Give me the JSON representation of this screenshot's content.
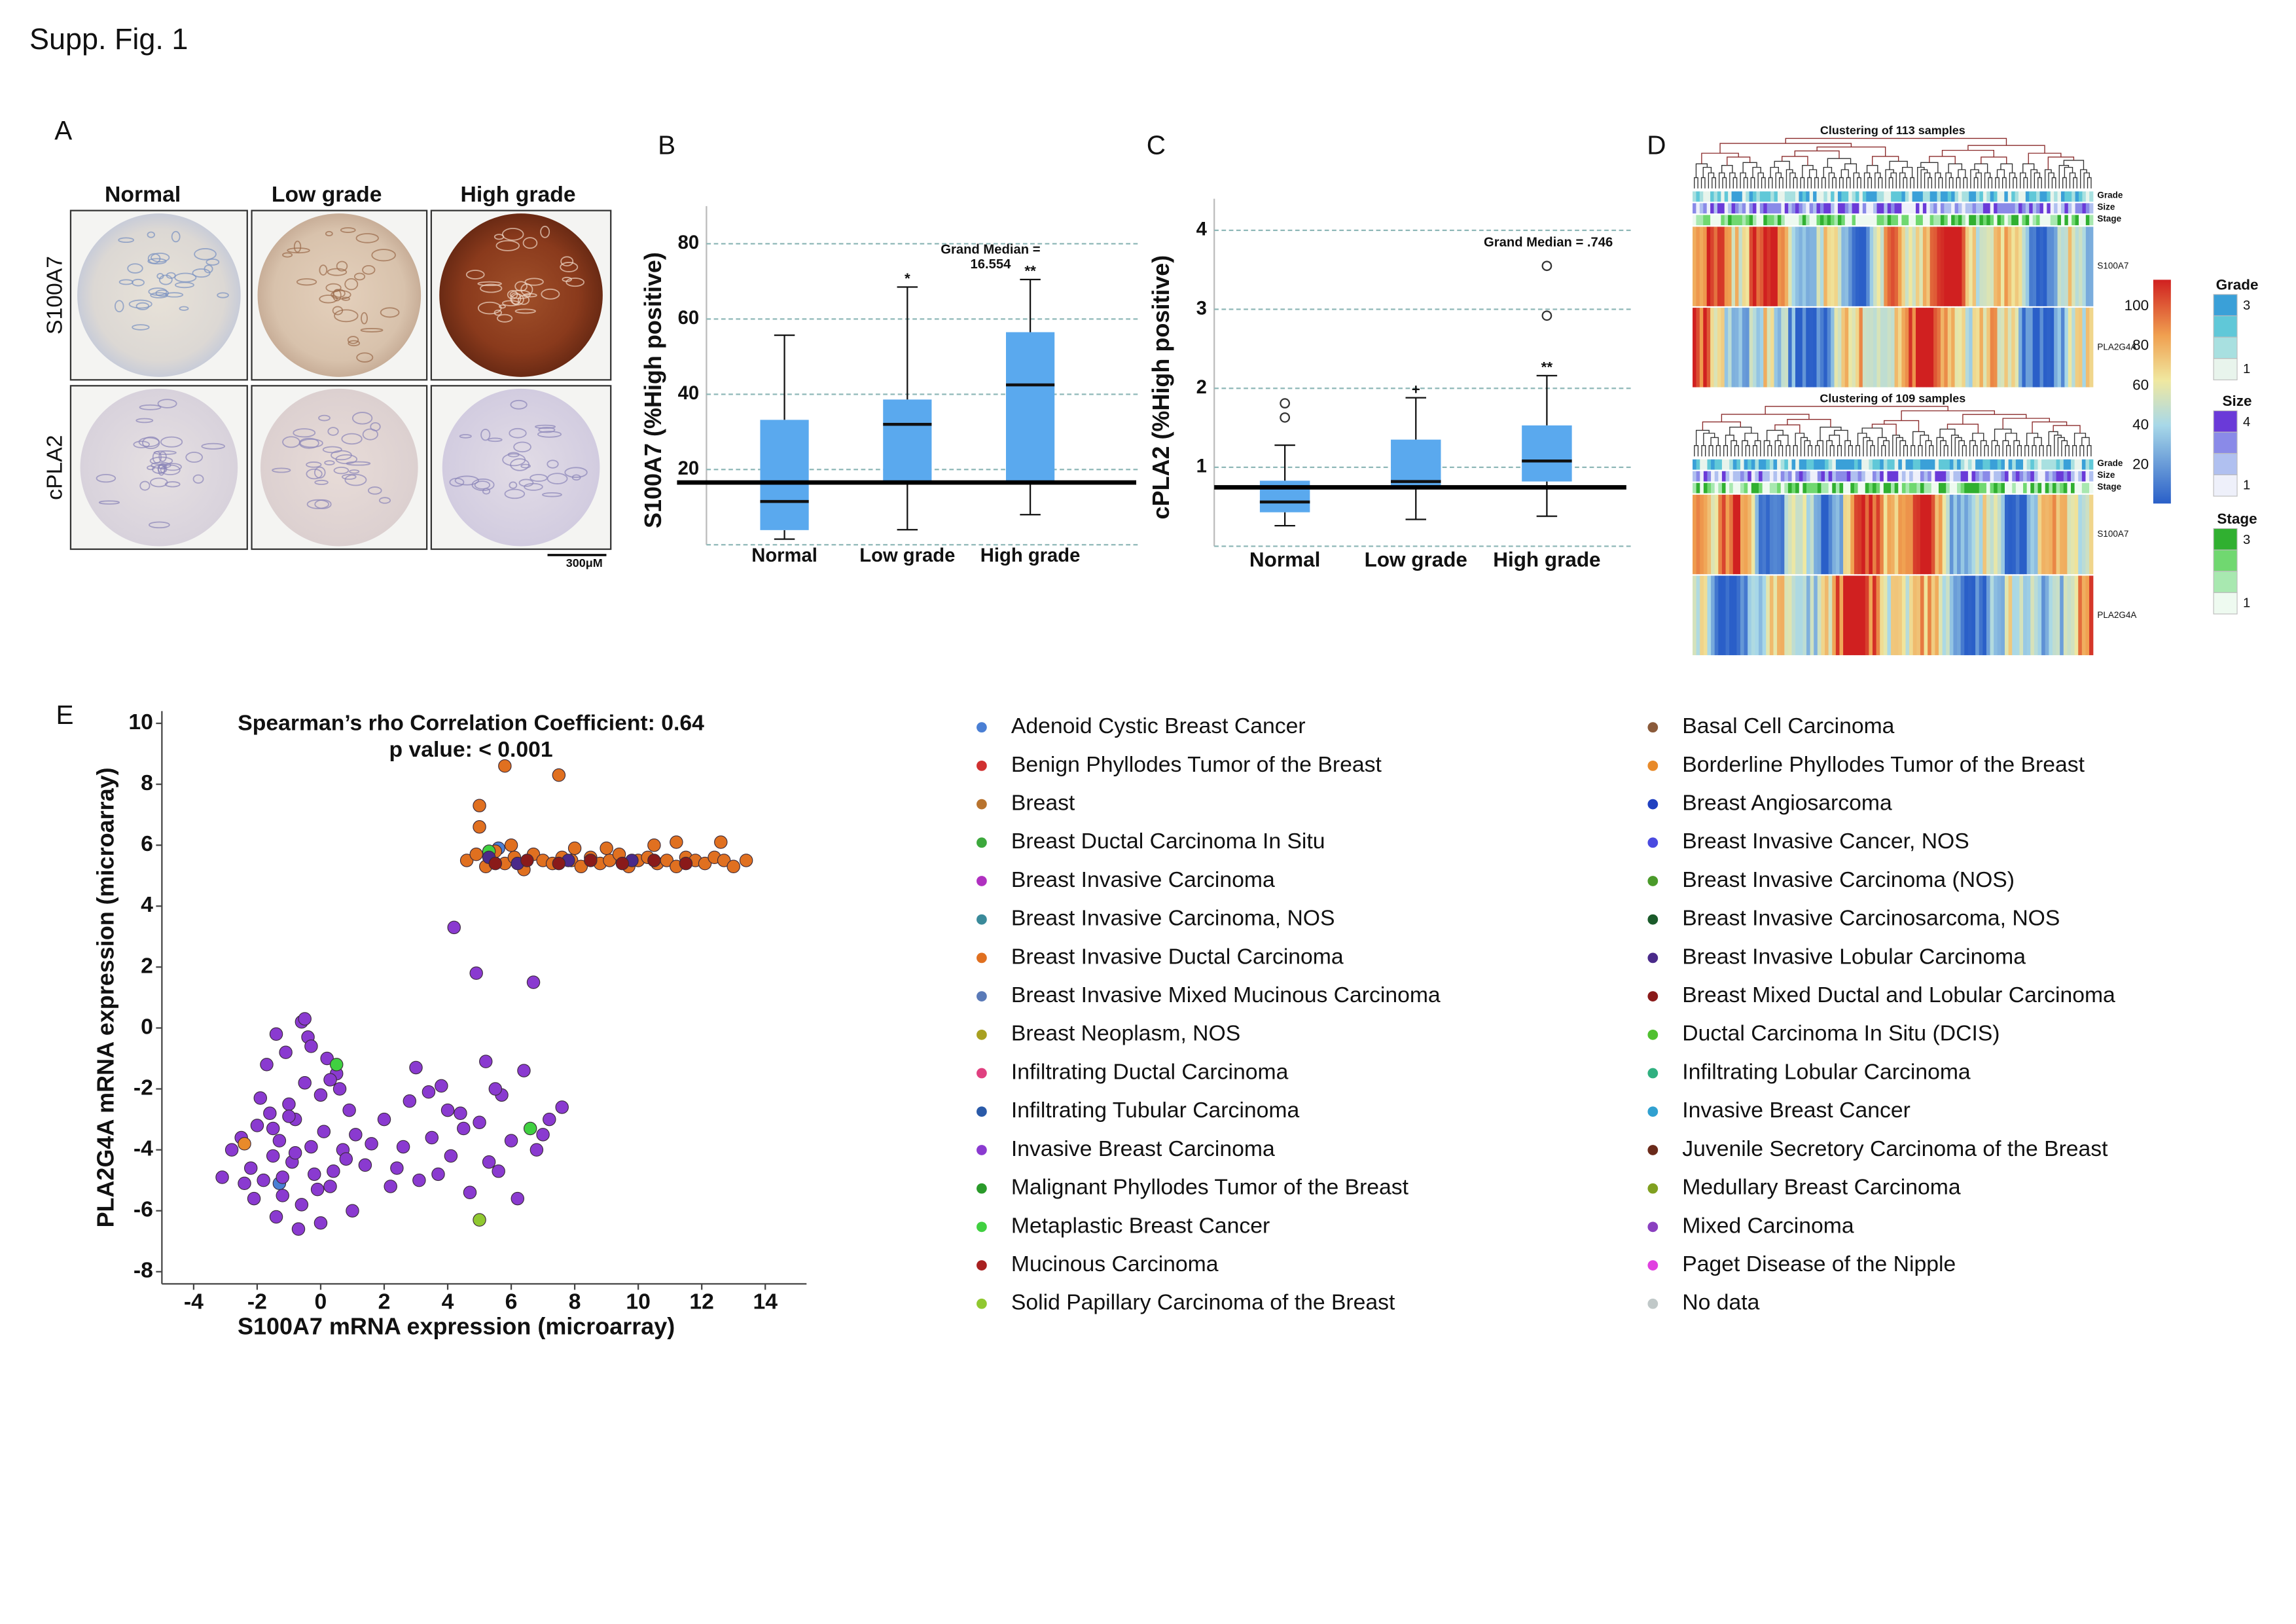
{
  "title": "Supp. Fig. 1",
  "panel_a": {
    "label": "A",
    "columns": [
      "Normal",
      "Low grade",
      "High grade"
    ],
    "rows": [
      "S100A7",
      "cPLA2"
    ],
    "scale_bar": "300μM"
  },
  "panel_d": {
    "label": "D",
    "heatmaps": [
      {
        "title": "Clustering of 113 samples",
        "tracks": [
          "Grade",
          "Size",
          "Stage"
        ],
        "genes": [
          "S100A7",
          "PLA2G4A"
        ]
      },
      {
        "title": "Clustering of 109 samples",
        "tracks": [
          "Grade",
          "Size",
          "Stage"
        ],
        "genes": [
          "S100A7",
          "PLA2G4A"
        ]
      }
    ],
    "colorbar_ticks": [
      100,
      80,
      60,
      40,
      20
    ],
    "legends": [
      {
        "title": "Grade",
        "labels": [
          3,
          1
        ]
      },
      {
        "title": "Size",
        "labels": [
          4,
          1
        ]
      },
      {
        "title": "Stage",
        "labels": [
          3,
          1
        ]
      }
    ]
  },
  "chart_data": [
    {
      "type": "box",
      "label": "B",
      "ylabel": "S100A7 (%High positive)",
      "categories": [
        "Normal",
        "Low grade",
        "High grade"
      ],
      "color": "#5aa9ee",
      "grid": true,
      "ylim": [
        0,
        90
      ],
      "yticks": [
        20,
        40,
        60,
        80
      ],
      "whisker_low": [
        1.5,
        4,
        8
      ],
      "q1": [
        3.9,
        16.1,
        16
      ],
      "median": [
        11.5,
        32,
        42.5
      ],
      "q3": [
        33.2,
        38.6,
        56.5
      ],
      "whisker_high": [
        55.7,
        68.5,
        70.5
      ],
      "outliers": [
        [],
        [],
        []
      ],
      "significance": [
        null,
        "*",
        "**"
      ],
      "grand_median": 16.554,
      "annotation": [
        "Grand Median =",
        "16.554"
      ]
    },
    {
      "type": "box",
      "label": "C",
      "ylabel": "cPLA2 (%High positive)",
      "categories": [
        "Normal",
        "Low grade",
        "High grade"
      ],
      "color": "#5aa9ee",
      "grid": true,
      "ylim": [
        0,
        4.4
      ],
      "yticks": [
        1,
        2,
        3,
        4
      ],
      "whisker_low": [
        0.26,
        0.34,
        0.38
      ],
      "q1": [
        0.43,
        0.76,
        0.82
      ],
      "median": [
        0.56,
        0.82,
        1.08
      ],
      "q3": [
        0.83,
        1.35,
        1.53
      ],
      "whisker_high": [
        1.28,
        1.88,
        2.16
      ],
      "outliers": [
        [
          1.63,
          1.81
        ],
        [],
        [
          2.92,
          3.55
        ]
      ],
      "significance": [
        null,
        "+",
        "**"
      ],
      "grand_median": 0.746,
      "annotation": [
        "Grand Median = .746"
      ]
    },
    {
      "type": "scatter",
      "label": "E",
      "title": [
        "Spearman’s rho Correlation Coefficient: 0.64",
        "p value: < 0.001"
      ],
      "xlabel": "S100A7 mRNA expression (microarray)",
      "ylabel": "PLA2G4A mRNA expression (microarray)",
      "xlim": [
        -5,
        15.3
      ],
      "ylim": [
        -8.4,
        10.4
      ],
      "xticks": [
        -4,
        -2,
        0,
        2,
        4,
        6,
        8,
        10,
        12,
        14
      ],
      "yticks": [
        -8,
        -6,
        -4,
        -2,
        0,
        2,
        4,
        6,
        8,
        10
      ],
      "series": [
        {
          "name": "Adenoid Cystic Breast Cancer",
          "color": "#4a7fd4",
          "x": [
            5.6,
            -1.3
          ],
          "values": [
            5.9,
            -5.1
          ]
        },
        {
          "name": "Benign Phyllodes Tumor of the Breast",
          "color": "#d03030",
          "x": [],
          "values": []
        },
        {
          "name": "Breast",
          "color": "#b8732e",
          "x": [],
          "values": []
        },
        {
          "name": "Breast Ductal Carcinoma In Situ",
          "color": "#3ca83c",
          "x": [],
          "values": []
        },
        {
          "name": "Breast Invasive Carcinoma",
          "color": "#b030c0",
          "x": [],
          "values": []
        },
        {
          "name": "Breast Invasive Carcinoma, NOS",
          "color": "#3a8a9a",
          "x": [],
          "values": []
        },
        {
          "name": "Breast Invasive Ductal Carcinoma",
          "color": "#e07020",
          "x": [
            4.6,
            4.9,
            5.2,
            5.5,
            5.8,
            6.1,
            6.4,
            6.7,
            7.0,
            7.3,
            7.6,
            7.9,
            8.2,
            8.5,
            8.8,
            9.1,
            9.4,
            9.7,
            10.0,
            10.3,
            10.6,
            10.9,
            11.2,
            11.5,
            11.8,
            12.1,
            12.4,
            12.7,
            13.0,
            13.4,
            5.0,
            5.0,
            5.8,
            7.5,
            12.6,
            11.2,
            6.0,
            8.0,
            9.0,
            10.5
          ],
          "values": [
            5.5,
            5.7,
            5.3,
            5.8,
            5.4,
            5.6,
            5.2,
            5.7,
            5.5,
            5.4,
            5.6,
            5.5,
            5.3,
            5.6,
            5.4,
            5.5,
            5.7,
            5.3,
            5.5,
            5.6,
            5.4,
            5.5,
            5.3,
            5.6,
            5.5,
            5.4,
            5.6,
            5.5,
            5.3,
            5.5,
            6.6,
            7.3,
            8.6,
            8.3,
            6.1,
            6.1,
            6.0,
            5.9,
            5.9,
            6.0
          ]
        },
        {
          "name": "Breast Invasive Mixed Mucinous Carcinoma",
          "color": "#5a7ab8",
          "x": [],
          "values": []
        },
        {
          "name": "Breast Neoplasm, NOS",
          "color": "#a8a020",
          "x": [],
          "values": []
        },
        {
          "name": "Infiltrating Ductal Carcinoma",
          "color": "#e04080",
          "x": [],
          "values": []
        },
        {
          "name": "Infiltrating Tubular Carcinoma",
          "color": "#2a5aa8",
          "x": [],
          "values": []
        },
        {
          "name": "Invasive Breast Carcinoma",
          "color": "#8a3ad0",
          "x": [
            -2.8,
            -2.5,
            -2.2,
            -2.0,
            -1.8,
            -1.6,
            -1.5,
            -1.3,
            -1.2,
            -1.0,
            -0.9,
            -0.8,
            -0.6,
            -0.5,
            -0.3,
            -0.2,
            0,
            0.1,
            0.3,
            0.5,
            0.7,
            0.9,
            1.1,
            1.4,
            -2.1,
            -1.7,
            -1.4,
            -1.1,
            -0.7,
            -0.4,
            -0.1,
            0.2,
            0.6,
            1.0,
            -1.9,
            -1.2,
            -0.6,
            0.4,
            -2.4,
            -1.5,
            -0.8,
            0.0,
            -1.0,
            -0.3,
            0.8,
            1.6,
            2.0,
            2.4,
            2.8,
            3.1,
            3.5,
            3.8,
            4.1,
            4.4,
            4.7,
            5.0,
            5.3,
            5.7,
            6.0,
            6.4,
            6.8,
            7.2,
            7.6,
            2.2,
            3.0,
            3.7,
            4.5,
            5.5,
            6.2,
            2.6,
            4.0,
            5.2,
            -1.4,
            -0.5,
            4.2,
            3.4,
            5.6,
            7.0,
            0.3,
            -3.1,
            4.9,
            6.7
          ],
          "values": [
            -4.0,
            -3.6,
            -4.6,
            -3.2,
            -5.0,
            -2.8,
            -4.2,
            -3.7,
            -5.5,
            -2.5,
            -4.4,
            -3.0,
            -5.8,
            -1.8,
            -3.9,
            -4.8,
            -2.2,
            -3.4,
            -5.2,
            -1.5,
            -4.0,
            -2.7,
            -3.5,
            -4.5,
            -5.6,
            -1.2,
            -6.2,
            -0.8,
            -6.6,
            -0.3,
            -5.3,
            -1.0,
            -2.0,
            -6.0,
            -2.3,
            -4.9,
            0.2,
            -4.7,
            -5.1,
            -3.3,
            -4.1,
            -6.4,
            -2.9,
            -0.6,
            -4.3,
            -3.8,
            -3.0,
            -4.6,
            -2.4,
            -5.0,
            -3.6,
            -1.9,
            -4.2,
            -2.8,
            -5.4,
            -3.1,
            -4.4,
            -2.2,
            -3.7,
            -1.4,
            -4.0,
            -3.0,
            -2.6,
            -5.2,
            -1.3,
            -4.8,
            -3.3,
            -2.0,
            -5.6,
            -3.9,
            -2.7,
            -1.1,
            -0.2,
            0.3,
            3.3,
            -2.1,
            -4.7,
            -3.5,
            -1.7,
            -4.9,
            1.8,
            1.5
          ]
        },
        {
          "name": "Malignant Phyllodes Tumor of the Breast",
          "color": "#2a9a2a",
          "x": [],
          "values": []
        },
        {
          "name": "Metaplastic Breast Cancer",
          "color": "#40d040",
          "x": [
            5.3,
            0.5,
            6.6
          ],
          "values": [
            5.8,
            -1.2,
            -3.3
          ]
        },
        {
          "name": "Mucinous Carcinoma",
          "color": "#a82020",
          "x": [],
          "values": []
        },
        {
          "name": "Solid Papillary Carcinoma of the Breast",
          "color": "#90c830",
          "x": [
            5.0
          ],
          "values": [
            -6.3
          ]
        },
        {
          "name": "Basal Cell Carcinoma",
          "color": "#8a5a3a",
          "x": [],
          "values": []
        },
        {
          "name": "Borderline Phyllodes Tumor of the Breast",
          "color": "#e88a2a",
          "x": [
            -2.4
          ],
          "values": [
            -3.8
          ]
        },
        {
          "name": "Breast Angiosarcoma",
          "color": "#2040c0",
          "x": [],
          "values": []
        },
        {
          "name": "Breast Invasive Cancer, NOS",
          "color": "#4a4ae0",
          "x": [],
          "values": []
        },
        {
          "name": "Breast Invasive Carcinoma (NOS)",
          "color": "#4a9a2a",
          "x": [],
          "values": []
        },
        {
          "name": "Breast Invasive Carcinosarcoma, NOS",
          "color": "#1a5a2a",
          "x": [],
          "values": []
        },
        {
          "name": "Breast Invasive Lobular Carcinoma",
          "color": "#4a2a8a",
          "x": [
            5.3,
            6.2,
            7.8,
            9.8
          ],
          "values": [
            5.6,
            5.4,
            5.5,
            5.5
          ]
        },
        {
          "name": "Breast Mixed Ductal and Lobular Carcinoma",
          "color": "#8a1a1a",
          "x": [
            5.5,
            6.5,
            7.5,
            8.5,
            9.5,
            10.5,
            11.5
          ],
          "values": [
            5.4,
            5.5,
            5.4,
            5.5,
            5.4,
            5.5,
            5.4
          ]
        },
        {
          "name": "Ductal Carcinoma In Situ (DCIS)",
          "color": "#50c030",
          "x": [],
          "values": []
        },
        {
          "name": "Infiltrating Lobular Carcinoma",
          "color": "#30b080",
          "x": [],
          "values": []
        },
        {
          "name": "Invasive Breast Cancer",
          "color": "#30a0d0",
          "x": [],
          "values": []
        },
        {
          "name": "Juvenile Secretory Carcinoma of the Breast",
          "color": "#6a2a1a",
          "x": [],
          "values": []
        },
        {
          "name": "Medullary Breast Carcinoma",
          "color": "#80a020",
          "x": [],
          "values": []
        },
        {
          "name": "Mixed Carcinoma",
          "color": "#8a40c0",
          "x": [],
          "values": []
        },
        {
          "name": "Paget Disease of the Nipple",
          "color": "#e040e0",
          "x": [],
          "values": []
        },
        {
          "name": "No data",
          "color": "#c0c8c8",
          "x": [],
          "values": []
        }
      ]
    }
  ]
}
